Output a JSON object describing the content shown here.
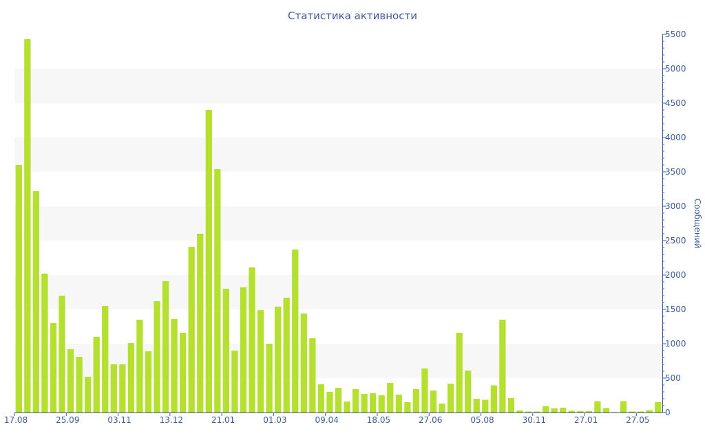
{
  "colors": {
    "bar": "#b5e02f",
    "axis": "#3e5a9a",
    "band": "#f7f7f7",
    "background": "#ffffff"
  },
  "chart_data": {
    "type": "bar",
    "title": "Статистика активности",
    "xlabel": "",
    "ylabel": "Сообщений",
    "ylim": [
      0,
      5500
    ],
    "y_ticks": [
      0,
      500,
      1000,
      1500,
      2000,
      2500,
      3000,
      3500,
      4000,
      4500,
      5000,
      5500
    ],
    "y_axis_side": "right",
    "grid": "alternating horizontal bands",
    "x_tick_labels": [
      {
        "label": "17.08",
        "index": 0
      },
      {
        "label": "25.09",
        "index": 6
      },
      {
        "label": "03.11",
        "index": 12
      },
      {
        "label": "13.12",
        "index": 18
      },
      {
        "label": "21.01",
        "index": 24
      },
      {
        "label": "01.03",
        "index": 30
      },
      {
        "label": "09.04",
        "index": 36
      },
      {
        "label": "18.05",
        "index": 42
      },
      {
        "label": "27.06",
        "index": 48
      },
      {
        "label": "05.08",
        "index": 54
      },
      {
        "label": "30.11",
        "index": 60
      },
      {
        "label": "27.01",
        "index": 66
      },
      {
        "label": "27.05",
        "index": 72
      }
    ],
    "values": [
      3600,
      5430,
      3220,
      2020,
      1300,
      1700,
      920,
      810,
      520,
      1100,
      1550,
      700,
      700,
      1010,
      1350,
      890,
      1620,
      1910,
      1360,
      1160,
      2410,
      2600,
      4400,
      3540,
      1800,
      900,
      1820,
      2110,
      1490,
      1000,
      1540,
      1670,
      2370,
      1440,
      1080,
      410,
      300,
      360,
      160,
      340,
      270,
      280,
      250,
      430,
      260,
      150,
      340,
      640,
      320,
      130,
      420,
      1160,
      610,
      200,
      185,
      395,
      1350,
      210,
      30,
      15,
      15,
      90,
      60,
      70,
      25,
      20,
      20,
      165,
      65,
      5,
      165,
      15,
      15,
      35,
      150
    ]
  }
}
